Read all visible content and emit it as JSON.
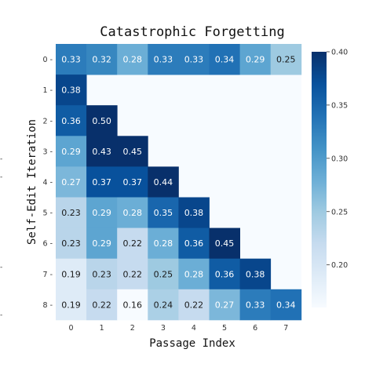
{
  "chart_data": {
    "type": "heatmap",
    "title": "Catastrophic Forgetting",
    "xlabel": "Passage Index",
    "ylabel": "Self-Edit Iteration",
    "x_ticks": [
      "0",
      "1",
      "2",
      "3",
      "4",
      "5",
      "6",
      "7"
    ],
    "y_ticks": [
      "0",
      "1",
      "2",
      "3",
      "4",
      "5",
      "6",
      "7",
      "8"
    ],
    "values": [
      [
        0.33,
        0.32,
        0.28,
        0.33,
        0.33,
        0.34,
        0.29,
        0.25
      ],
      [
        0.38,
        null,
        null,
        null,
        null,
        null,
        null,
        null
      ],
      [
        0.36,
        0.5,
        null,
        null,
        null,
        null,
        null,
        null
      ],
      [
        0.29,
        0.43,
        0.45,
        null,
        null,
        null,
        null,
        null
      ],
      [
        0.27,
        0.37,
        0.37,
        0.44,
        null,
        null,
        null,
        null
      ],
      [
        0.23,
        0.29,
        0.28,
        0.35,
        0.38,
        null,
        null,
        null
      ],
      [
        0.23,
        0.29,
        0.22,
        0.28,
        0.36,
        0.45,
        null,
        null
      ],
      [
        0.19,
        0.23,
        0.22,
        0.25,
        0.28,
        0.36,
        0.38,
        null
      ],
      [
        0.19,
        0.22,
        0.16,
        0.24,
        0.22,
        0.27,
        0.33,
        0.34
      ]
    ],
    "colorscale": "Blues",
    "vmin": 0.16,
    "vmax": 0.4,
    "colorbar_ticks": [
      "0.20",
      "0.25",
      "0.30",
      "0.35",
      "0.40"
    ],
    "grid": false
  },
  "edge_marks": [
    "-",
    "-",
    "-",
    "-"
  ]
}
